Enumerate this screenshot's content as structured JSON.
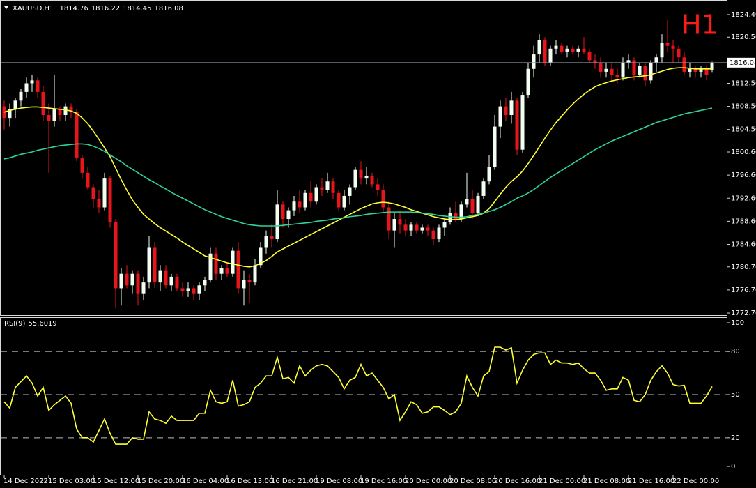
{
  "chart_data": [
    {
      "type": "candlestick",
      "title": "XAUUSD,H1",
      "timeframe_label": "H1",
      "categories": [
        "14 Dec 2022",
        null,
        null,
        null,
        null,
        null,
        null,
        null,
        "15 Dec 03:00",
        null,
        null,
        null,
        null,
        null,
        null,
        null,
        "15 Dec 12:00",
        null,
        null,
        null,
        null,
        null,
        null,
        null,
        "15 Dec 20:00",
        null,
        null,
        null,
        null,
        null,
        null,
        null,
        "16 Dec 04:00",
        null,
        null,
        null,
        null,
        null,
        null,
        null,
        "16 Dec 13:00",
        null,
        null,
        null,
        null,
        null,
        null,
        null,
        "16 Dec 21:00",
        null,
        null,
        null,
        null,
        null,
        null,
        null,
        "19 Dec 08:00",
        null,
        null,
        null,
        null,
        null,
        null,
        null,
        "19 Dec 16:00",
        null,
        null,
        null,
        null,
        null,
        null,
        null,
        "20 Dec 00:00",
        null,
        null,
        null,
        null,
        null,
        null,
        null,
        "20 Dec 08:00",
        null,
        null,
        null,
        null,
        null,
        null,
        null,
        "20 Dec 16:00",
        null,
        null,
        null,
        null,
        null,
        null,
        null,
        "21 Dec 00:00",
        null,
        null,
        null,
        null,
        null,
        null,
        null,
        "21 Dec 08:00",
        null,
        null,
        null,
        null,
        null,
        null,
        null,
        "21 Dec 16:00",
        null,
        null,
        null,
        null,
        null,
        null,
        null,
        "22 Dec 00:00",
        null,
        null,
        null,
        null,
        null,
        null,
        null
      ],
      "open": [
        1808.5,
        1806.5,
        1808,
        1809.5,
        1811,
        1812.5,
        1813,
        1811,
        1807,
        1806,
        1808,
        1807,
        1808.5,
        1807.5,
        1799.5,
        1797,
        1794.5,
        1792.5,
        1791,
        1796,
        1788.5,
        1777,
        1779.5,
        1777.5,
        1779.5,
        1776,
        1778,
        1784,
        1778,
        1780,
        1777.5,
        1779,
        1777,
        1776.5,
        1777,
        1776,
        1777.5,
        1778.5,
        1783,
        1779.5,
        1780.5,
        1779.5,
        1783.5,
        1777,
        1778.5,
        1778,
        1781,
        1784,
        1786,
        1785.5,
        1791.5,
        1789,
        1790.5,
        1792,
        1791,
        1793.5,
        1792,
        1794.5,
        1794,
        1795.5,
        1793.5,
        1791,
        1793,
        1794.5,
        1797.5,
        1796,
        1796.5,
        1795,
        1794,
        1791,
        1787,
        1789,
        1788,
        1787,
        1788,
        1787,
        1787.5,
        1787,
        1785.5,
        1787.5,
        1788.5,
        1790,
        1789,
        1791.5,
        1792.5,
        1790,
        1793,
        1795.5,
        1798,
        1805,
        1808.5,
        1807,
        1809.5,
        1801,
        1810.5,
        1815,
        1817.5,
        1820,
        1816,
        1818.5,
        1819,
        1818,
        1818.5,
        1818,
        1818.5,
        1818,
        1816.5,
        1816,
        1814.5,
        1815,
        1814,
        1813.5,
        1816,
        1816.5,
        1814,
        1815.5,
        1813,
        1816,
        1817,
        1819.5,
        1819,
        1818.5,
        1817,
        1814.5,
        1815,
        1814.5,
        1815,
        1814.76
      ],
      "high": [
        1809.5,
        1809,
        1810,
        1811.5,
        1813.5,
        1814,
        1813.5,
        1812,
        1809,
        1814,
        1808.5,
        1809,
        1809,
        1808,
        1800,
        1798,
        1795,
        1794,
        1797,
        1796.5,
        1789,
        1780.5,
        1781,
        1780,
        1780,
        1779,
        1786,
        1785,
        1781,
        1781,
        1779.5,
        1779.5,
        1778,
        1778,
        1777.5,
        1778,
        1779,
        1784,
        1784,
        1781,
        1781.5,
        1784,
        1785,
        1780,
        1779.5,
        1782,
        1785,
        1787,
        1788,
        1794,
        1792,
        1791,
        1793,
        1794,
        1794,
        1795.5,
        1795,
        1796,
        1797,
        1796,
        1794,
        1794,
        1795,
        1798,
        1799,
        1798,
        1797,
        1796,
        1795,
        1792,
        1790,
        1790.5,
        1789,
        1788.5,
        1788.5,
        1788,
        1788,
        1787.5,
        1788,
        1789,
        1791,
        1792,
        1792,
        1797,
        1794,
        1793.5,
        1796,
        1800,
        1807,
        1809.5,
        1810,
        1811,
        1810,
        1811,
        1816,
        1819,
        1821,
        1820.5,
        1819,
        1820,
        1819.5,
        1819,
        1819,
        1819,
        1820.5,
        1818.5,
        1817.5,
        1817,
        1816,
        1816,
        1815,
        1817,
        1817.5,
        1817,
        1816,
        1816,
        1816.5,
        1817.5,
        1821,
        1823.5,
        1820,
        1819,
        1818,
        1816,
        1815.5,
        1815.5,
        1815.5,
        1816.22
      ],
      "low": [
        1804.5,
        1805,
        1806.5,
        1808.5,
        1810,
        1811,
        1810,
        1806,
        1797,
        1805,
        1806,
        1806,
        1806.5,
        1799,
        1796,
        1794,
        1791,
        1790,
        1790.5,
        1787.5,
        1773.5,
        1774,
        1777,
        1776,
        1774,
        1775,
        1777,
        1777,
        1776.5,
        1777,
        1776.5,
        1776.5,
        1775.5,
        1775.5,
        1775,
        1775,
        1776.5,
        1778,
        1778.5,
        1778.5,
        1779,
        1779,
        1776,
        1774,
        1774.5,
        1777.5,
        1780.5,
        1783,
        1784,
        1785,
        1787.5,
        1787.5,
        1789.5,
        1790,
        1790.5,
        1791,
        1791.5,
        1793,
        1793.5,
        1792.5,
        1790.5,
        1790.5,
        1791.5,
        1794,
        1795,
        1795,
        1794.5,
        1793,
        1790,
        1785.5,
        1784,
        1786.5,
        1786,
        1786,
        1786.5,
        1786.5,
        1786,
        1784.5,
        1785,
        1786,
        1788,
        1788.5,
        1788.5,
        1791,
        1789,
        1789.5,
        1792.5,
        1795,
        1797.5,
        1803,
        1806,
        1805.5,
        1800,
        1800.5,
        1810,
        1813.5,
        1816,
        1815.5,
        1815.5,
        1817.5,
        1817.5,
        1817,
        1817.5,
        1817,
        1817.5,
        1816,
        1815,
        1813.5,
        1813.5,
        1813,
        1812.5,
        1813,
        1815,
        1813,
        1813.5,
        1812,
        1812.5,
        1814.5,
        1816,
        1818,
        1816,
        1816,
        1814,
        1813.5,
        1813.5,
        1813.5,
        1813,
        1814.45
      ],
      "close": [
        1806.5,
        1808,
        1809.5,
        1811,
        1812.5,
        1813,
        1811,
        1807,
        1806,
        1808,
        1807,
        1808.5,
        1807.5,
        1799.5,
        1797,
        1794.5,
        1792.5,
        1791,
        1796,
        1788.5,
        1777,
        1779.5,
        1777.5,
        1779.5,
        1776,
        1778,
        1784,
        1778,
        1780,
        1777.5,
        1779,
        1777,
        1776.5,
        1777,
        1776,
        1777.5,
        1778.5,
        1783,
        1779.5,
        1780.5,
        1779.5,
        1783.5,
        1777,
        1778.5,
        1778,
        1781,
        1784,
        1786,
        1785.5,
        1791.5,
        1789,
        1790.5,
        1792,
        1791,
        1793.5,
        1792,
        1794.5,
        1794,
        1795.5,
        1793.5,
        1791,
        1793,
        1794.5,
        1797.5,
        1796,
        1796.5,
        1795,
        1794,
        1791,
        1787,
        1789,
        1788,
        1787,
        1788,
        1787,
        1787.5,
        1787,
        1785.5,
        1787.5,
        1788.5,
        1790,
        1789,
        1791.5,
        1792.5,
        1790,
        1793,
        1795.5,
        1798,
        1805,
        1808.5,
        1807,
        1809.5,
        1801,
        1810.5,
        1815,
        1817.5,
        1820,
        1816,
        1818.5,
        1819,
        1818,
        1818.5,
        1818,
        1818.5,
        1818,
        1816.5,
        1816,
        1814.5,
        1815,
        1814,
        1813.5,
        1816,
        1816.5,
        1814,
        1815.5,
        1813,
        1816,
        1817,
        1819.5,
        1819,
        1818.5,
        1817,
        1814.5,
        1815,
        1814.5,
        1815,
        1814,
        1816.08
      ],
      "up_color": "#f4fff4",
      "down_color": "#e8161b",
      "overlays": [
        {
          "color": "#ffff33",
          "values": [
            1807.5,
            1807.8,
            1808,
            1808.2,
            1808.3,
            1808.4,
            1808.4,
            1808.3,
            1808.2,
            1808.1,
            1808,
            1807.9,
            1807.7,
            1807.3,
            1806.5,
            1805.5,
            1804.2,
            1802.8,
            1801.3,
            1799.8,
            1797.8,
            1795.8,
            1794,
            1792.3,
            1791,
            1789.8,
            1789,
            1788.2,
            1787.5,
            1786.9,
            1786.3,
            1785.7,
            1785,
            1784.4,
            1783.8,
            1783.2,
            1782.6,
            1782.3,
            1782,
            1781.7,
            1781.4,
            1781.2,
            1781,
            1780.8,
            1780.7,
            1780.9,
            1781.3,
            1781.8,
            1782.5,
            1783.3,
            1783.8,
            1784.3,
            1784.8,
            1785.3,
            1785.8,
            1786.3,
            1786.8,
            1787.3,
            1787.8,
            1788.3,
            1788.8,
            1789.3,
            1789.8,
            1790.3,
            1790.8,
            1791.2,
            1791.6,
            1791.8,
            1791.9,
            1791.8,
            1791.6,
            1791.3,
            1791,
            1790.6,
            1790.3,
            1790,
            1789.7,
            1789.4,
            1789.2,
            1789,
            1788.9,
            1788.9,
            1789,
            1789.2,
            1789.4,
            1789.6,
            1790,
            1790.8,
            1792,
            1793.3,
            1794.5,
            1795.5,
            1796.3,
            1797.3,
            1798.6,
            1800,
            1801.5,
            1803,
            1804.4,
            1805.7,
            1806.8,
            1807.9,
            1808.9,
            1809.8,
            1810.6,
            1811.3,
            1811.9,
            1812.3,
            1812.6,
            1812.9,
            1813.1,
            1813.3,
            1813.5,
            1813.6,
            1813.7,
            1813.8,
            1814,
            1814.3,
            1814.6,
            1814.9,
            1815.1,
            1815.2,
            1815.2,
            1815.1,
            1815,
            1815,
            1815,
            1815
          ]
        },
        {
          "color": "#2fd39a",
          "values": [
            1799.4,
            1799.6,
            1799.9,
            1800.2,
            1800.4,
            1800.6,
            1800.9,
            1801.1,
            1801.3,
            1801.5,
            1801.7,
            1801.8,
            1801.9,
            1802,
            1802,
            1801.9,
            1801.6,
            1801.2,
            1800.7,
            1800.1,
            1799.5,
            1798.9,
            1798.2,
            1797.6,
            1797,
            1796.4,
            1795.8,
            1795.3,
            1794.7,
            1794.2,
            1793.6,
            1793.1,
            1792.6,
            1792.1,
            1791.6,
            1791.1,
            1790.6,
            1790.2,
            1789.8,
            1789.4,
            1789.1,
            1788.8,
            1788.5,
            1788.2,
            1788,
            1787.9,
            1787.8,
            1787.8,
            1787.8,
            1787.8,
            1787.9,
            1788,
            1788.1,
            1788.2,
            1788.3,
            1788.4,
            1788.6,
            1788.7,
            1788.8,
            1789,
            1789.1,
            1789.2,
            1789.4,
            1789.5,
            1789.6,
            1789.8,
            1789.9,
            1790,
            1790.1,
            1790.2,
            1790.2,
            1790.2,
            1790.2,
            1790.2,
            1790.1,
            1790,
            1789.9,
            1789.8,
            1789.6,
            1789.5,
            1789.4,
            1789.3,
            1789.3,
            1789.4,
            1789.6,
            1789.8,
            1790,
            1790.3,
            1790.6,
            1791,
            1791.5,
            1792,
            1792.6,
            1793,
            1793.5,
            1794.1,
            1794.8,
            1795.5,
            1796.2,
            1796.8,
            1797.4,
            1798,
            1798.6,
            1799.2,
            1799.8,
            1800.4,
            1801,
            1801.5,
            1802,
            1802.5,
            1802.9,
            1803.3,
            1803.7,
            1804.1,
            1804.5,
            1804.9,
            1805.3,
            1805.7,
            1806,
            1806.3,
            1806.6,
            1806.9,
            1807.2,
            1807.4,
            1807.6,
            1807.8,
            1808,
            1808.2
          ]
        }
      ],
      "ylim": [
        1772.34,
        1826.81
      ],
      "yticks": [
        {
          "value": 1772.7,
          "label": "1772.70"
        },
        {
          "value": 1776.7,
          "label": "1776.70"
        },
        {
          "value": 1780.7,
          "label": "1780.70"
        },
        {
          "value": 1784.6,
          "label": "1784.60"
        },
        {
          "value": 1788.6,
          "label": "1788.60"
        },
        {
          "value": 1792.6,
          "label": "1792.60"
        },
        {
          "value": 1796.6,
          "label": "1796.60"
        },
        {
          "value": 1800.6,
          "label": "1800.60"
        },
        {
          "value": 1804.5,
          "label": "1804.50"
        },
        {
          "value": 1808.5,
          "label": "1808.50"
        },
        {
          "value": 1812.5,
          "label": "1812.50"
        },
        {
          "value": 1820.5,
          "label": "1820.50"
        },
        {
          "value": 1824.4,
          "label": "1824.40"
        }
      ],
      "current_price_line": true,
      "grid": false
    },
    {
      "type": "line",
      "title": "RSI(9)",
      "color": "#ffff33",
      "values": [
        45,
        40.6,
        55,
        59,
        63,
        58,
        49,
        55,
        39,
        43,
        46,
        49,
        44,
        26,
        20,
        20,
        17,
        25,
        33,
        23,
        15.5,
        15.5,
        15.5,
        20,
        19,
        19,
        38,
        33,
        32,
        30,
        35,
        32,
        32,
        32,
        32,
        37,
        37,
        53,
        45,
        44,
        45,
        60,
        42,
        43,
        45,
        55,
        58,
        63,
        63,
        76,
        61,
        62,
        58,
        70,
        63,
        67,
        70,
        71,
        70,
        66,
        62,
        54,
        60,
        62,
        71,
        63,
        65,
        60,
        55,
        47,
        50,
        32,
        38,
        45,
        43,
        37,
        38,
        41.5,
        41.5,
        39,
        36,
        38,
        44,
        63,
        55,
        49,
        63,
        66,
        83,
        83,
        81,
        82.6,
        58,
        67,
        74,
        78,
        79,
        79,
        71,
        74,
        72,
        72,
        71,
        72,
        68,
        65,
        65,
        60,
        53,
        54,
        54,
        62,
        60,
        46,
        45,
        50,
        60,
        66,
        70,
        65,
        57,
        56,
        56.5,
        44,
        44,
        44,
        49,
        55.6019
      ],
      "ylim": [
        -5.8,
        103.38
      ],
      "yticks": [
        0,
        20,
        50,
        80,
        100
      ],
      "levels": [
        20,
        50,
        80
      ]
    }
  ]
}
